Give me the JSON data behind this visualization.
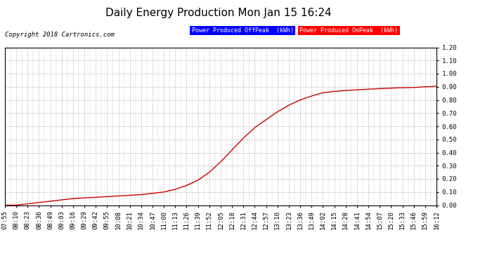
{
  "title": "Daily Energy Production Mon Jan 15 16:24",
  "copyright_text": "Copyright 2018 Cartronics.com",
  "legend_offpeak_label": "Power Produced OffPeak  (kWh)",
  "legend_onpeak_label": "Power Produced OnPeak  (kWh)",
  "offpeak_color": "#0000ff",
  "onpeak_color": "#ff0000",
  "legend_offpeak_bg": "#0000ff",
  "legend_onpeak_bg": "#ff0000",
  "line_color": "#cc0000",
  "background_color": "#ffffff",
  "plot_bg_color": "#ffffff",
  "grid_color": "#bbbbbb",
  "ylim": [
    0.0,
    1.2
  ],
  "yticks": [
    0.0,
    0.1,
    0.2,
    0.3,
    0.4,
    0.5,
    0.6,
    0.7,
    0.8,
    0.9,
    1.0,
    1.1,
    1.2
  ],
  "x_labels": [
    "07:55",
    "08:10",
    "08:23",
    "08:36",
    "08:49",
    "09:03",
    "09:16",
    "09:29",
    "09:42",
    "09:55",
    "10:08",
    "10:21",
    "10:34",
    "10:47",
    "11:00",
    "11:13",
    "11:26",
    "11:39",
    "11:52",
    "12:05",
    "12:18",
    "12:31",
    "12:44",
    "12:57",
    "13:10",
    "13:23",
    "13:36",
    "13:49",
    "14:02",
    "14:15",
    "14:28",
    "14:41",
    "14:54",
    "15:07",
    "15:20",
    "15:33",
    "15:46",
    "15:59",
    "16:12"
  ],
  "onpeak_y": [
    0.0,
    0.0,
    0.01,
    0.02,
    0.03,
    0.04,
    0.05,
    0.055,
    0.06,
    0.065,
    0.07,
    0.075,
    0.08,
    0.09,
    0.1,
    0.12,
    0.15,
    0.19,
    0.25,
    0.33,
    0.42,
    0.51,
    0.59,
    0.65,
    0.71,
    0.76,
    0.8,
    0.83,
    0.855,
    0.865,
    0.872,
    0.877,
    0.882,
    0.886,
    0.89,
    0.893,
    0.895,
    0.9,
    0.903
  ],
  "title_fontsize": 11,
  "tick_fontsize": 6.5,
  "copyright_fontsize": 6.5
}
